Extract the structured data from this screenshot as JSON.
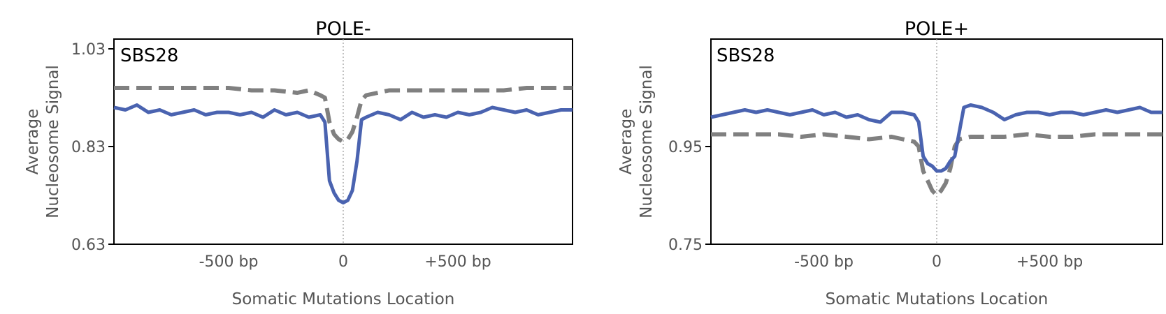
{
  "chart_data": [
    {
      "type": "line",
      "title": "POLE-",
      "panel_label": "SBS28",
      "xlabel": "Somatic Mutations Location",
      "ylabel_line1": "Average",
      "ylabel_line2": "Nucleosome Signal",
      "xlim": [
        -1000,
        1000
      ],
      "ylim": [
        0.63,
        1.05
      ],
      "yticks": [
        0.63,
        0.83,
        1.03
      ],
      "ytick_labels": [
        "0.63",
        "0.83",
        "1.03"
      ],
      "xticks": [
        -500,
        0,
        500
      ],
      "xtick_labels": [
        "-500 bp",
        "0",
        "+500 bp"
      ],
      "center_line": 0,
      "grid": false,
      "series": [
        {
          "style": "solid",
          "color": "#4a63b0",
          "x": [
            -1000,
            -950,
            -900,
            -850,
            -800,
            -750,
            -700,
            -650,
            -600,
            -550,
            -500,
            -450,
            -400,
            -350,
            -300,
            -250,
            -200,
            -150,
            -100,
            -80,
            -60,
            -40,
            -20,
            0,
            20,
            40,
            60,
            80,
            100,
            150,
            200,
            250,
            300,
            350,
            400,
            450,
            500,
            550,
            600,
            650,
            700,
            750,
            800,
            850,
            900,
            950,
            1000
          ],
          "y": [
            0.91,
            0.905,
            0.915,
            0.9,
            0.905,
            0.895,
            0.9,
            0.905,
            0.895,
            0.9,
            0.9,
            0.895,
            0.9,
            0.89,
            0.905,
            0.895,
            0.9,
            0.89,
            0.895,
            0.88,
            0.76,
            0.735,
            0.72,
            0.715,
            0.72,
            0.74,
            0.8,
            0.885,
            0.89,
            0.9,
            0.895,
            0.885,
            0.9,
            0.89,
            0.895,
            0.89,
            0.9,
            0.895,
            0.9,
            0.91,
            0.905,
            0.9,
            0.905,
            0.895,
            0.9,
            0.905,
            0.905
          ]
        },
        {
          "style": "dashed",
          "color": "#808080",
          "x": [
            -1000,
            -900,
            -800,
            -700,
            -600,
            -500,
            -400,
            -300,
            -200,
            -150,
            -100,
            -80,
            -60,
            -40,
            -20,
            0,
            20,
            40,
            60,
            80,
            100,
            150,
            200,
            300,
            400,
            500,
            600,
            700,
            800,
            900,
            1000
          ],
          "y": [
            0.95,
            0.95,
            0.95,
            0.95,
            0.95,
            0.95,
            0.945,
            0.945,
            0.94,
            0.945,
            0.935,
            0.93,
            0.88,
            0.855,
            0.845,
            0.84,
            0.845,
            0.86,
            0.89,
            0.925,
            0.935,
            0.94,
            0.945,
            0.945,
            0.945,
            0.945,
            0.945,
            0.945,
            0.95,
            0.95,
            0.95
          ]
        }
      ]
    },
    {
      "type": "line",
      "title": "POLE+",
      "panel_label": "SBS28",
      "xlabel": "Somatic Mutations Location",
      "ylabel_line1": "Average",
      "ylabel_line2": "Nucleosome Signal",
      "xlim": [
        -1000,
        1000
      ],
      "ylim": [
        0.75,
        1.17
      ],
      "yticks": [
        0.75,
        0.95
      ],
      "ytick_labels": [
        "0.75",
        "0.95"
      ],
      "xticks": [
        -500,
        0,
        500
      ],
      "xtick_labels": [
        "-500 bp",
        "0",
        "+500 bp"
      ],
      "center_line": 0,
      "grid": false,
      "series": [
        {
          "style": "solid",
          "color": "#4a63b0",
          "x": [
            -1000,
            -950,
            -900,
            -850,
            -800,
            -750,
            -700,
            -650,
            -600,
            -550,
            -500,
            -450,
            -400,
            -350,
            -300,
            -250,
            -200,
            -150,
            -100,
            -80,
            -60,
            -40,
            -20,
            0,
            20,
            40,
            60,
            80,
            100,
            120,
            150,
            200,
            250,
            300,
            350,
            400,
            450,
            500,
            550,
            600,
            650,
            700,
            750,
            800,
            850,
            900,
            950,
            1000
          ],
          "y": [
            1.01,
            1.015,
            1.02,
            1.025,
            1.02,
            1.025,
            1.02,
            1.015,
            1.02,
            1.025,
            1.015,
            1.02,
            1.01,
            1.015,
            1.005,
            1.0,
            1.02,
            1.02,
            1.015,
            1.0,
            0.93,
            0.915,
            0.91,
            0.9,
            0.9,
            0.905,
            0.92,
            0.93,
            0.98,
            1.03,
            1.035,
            1.03,
            1.02,
            1.005,
            1.015,
            1.02,
            1.02,
            1.015,
            1.02,
            1.02,
            1.015,
            1.02,
            1.025,
            1.02,
            1.025,
            1.03,
            1.02,
            1.02
          ]
        },
        {
          "style": "dashed",
          "color": "#808080",
          "x": [
            -1000,
            -900,
            -800,
            -700,
            -600,
            -500,
            -400,
            -300,
            -200,
            -150,
            -100,
            -80,
            -60,
            -40,
            -20,
            0,
            20,
            40,
            60,
            80,
            100,
            150,
            200,
            300,
            400,
            500,
            600,
            700,
            800,
            900,
            1000
          ],
          "y": [
            0.975,
            0.975,
            0.975,
            0.975,
            0.97,
            0.975,
            0.97,
            0.965,
            0.97,
            0.965,
            0.96,
            0.95,
            0.9,
            0.88,
            0.86,
            0.85,
            0.86,
            0.875,
            0.905,
            0.95,
            0.965,
            0.97,
            0.97,
            0.97,
            0.975,
            0.97,
            0.97,
            0.975,
            0.975,
            0.975,
            0.975
          ]
        }
      ]
    }
  ]
}
